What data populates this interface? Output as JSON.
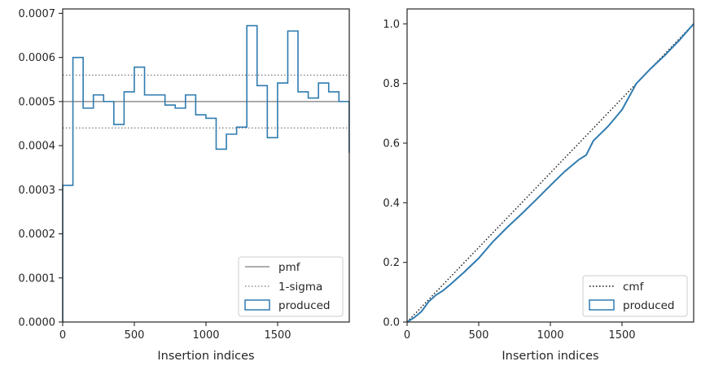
{
  "chart_data": [
    {
      "type": "step-histogram",
      "xlabel": "Insertion indices",
      "ylabel": "",
      "xlim": [
        0,
        2000
      ],
      "ylim": [
        0,
        0.00071
      ],
      "xticks": [
        0,
        500,
        1000,
        1500
      ],
      "yticks": [
        0,
        0.0001,
        0.0002,
        0.0003,
        0.0004,
        0.0005,
        0.0006,
        0.0007
      ],
      "ytick_labels": [
        "0.0000",
        "0.0001",
        "0.0002",
        "0.0003",
        "0.0004",
        "0.0005",
        "0.0006",
        "0.0007"
      ],
      "grid": false,
      "legend_position": "lower-right",
      "reference_lines": [
        {
          "name": "pmf",
          "y": 0.0005,
          "style": "solid",
          "color": "#7a7a7a"
        },
        {
          "name": "1-sigma",
          "y": [
            0.00044,
            0.00056
          ],
          "style": "dotted",
          "color": "#7a7a7a"
        }
      ],
      "series": [
        {
          "name": "produced",
          "color": "#2f7bb0",
          "bin_width": 71.4,
          "values": [
            0.00031,
            0.0006,
            0.000485,
            0.000515,
            0.0005,
            0.000448,
            0.000522,
            0.000578,
            0.000515,
            0.000515,
            0.000492,
            0.000485,
            0.000515,
            0.00047,
            0.000462,
            0.000392,
            0.000426,
            0.000442,
            0.000672,
            0.000536,
            0.000418,
            0.000542,
            0.00066,
            0.000522,
            0.000508,
            0.000542,
            0.000522,
            0.0005,
            0.000385
          ]
        }
      ]
    },
    {
      "type": "line",
      "xlabel": "Insertion indices",
      "ylabel": "",
      "xlim": [
        0,
        2000
      ],
      "ylim": [
        0,
        1.05
      ],
      "xticks": [
        0,
        500,
        1000,
        1500
      ],
      "yticks": [
        0,
        0.2,
        0.4,
        0.6,
        0.8,
        1.0
      ],
      "ytick_labels": [
        "0.0",
        "0.2",
        "0.4",
        "0.6",
        "0.8",
        "1.0"
      ],
      "grid": false,
      "legend_position": "lower-right",
      "series": [
        {
          "name": "cmf",
          "style": "dotted",
          "color": "#111111",
          "x": [
            0,
            2000
          ],
          "y": [
            0,
            1.0
          ]
        },
        {
          "name": "produced",
          "style": "solid",
          "color": "#2f7bb0",
          "x": [
            0,
            50,
            100,
            150,
            200,
            250,
            300,
            400,
            500,
            600,
            700,
            800,
            900,
            1000,
            1100,
            1200,
            1250,
            1300,
            1400,
            1500,
            1600,
            1700,
            1800,
            1900,
            2000
          ],
          "y": [
            0,
            0.015,
            0.035,
            0.068,
            0.09,
            0.105,
            0.125,
            0.168,
            0.214,
            0.27,
            0.318,
            0.363,
            0.41,
            0.458,
            0.505,
            0.545,
            0.56,
            0.608,
            0.655,
            0.712,
            0.8,
            0.85,
            0.895,
            0.945,
            1.0
          ]
        }
      ]
    }
  ],
  "panels": [
    {
      "xtick_labels": [
        "0",
        "500",
        "1000",
        "1500"
      ],
      "xlabel": "Insertion indices",
      "legend": [
        "pmf",
        "1-sigma",
        "produced"
      ]
    },
    {
      "xtick_labels": [
        "0",
        "500",
        "1000",
        "1500"
      ],
      "xlabel": "Insertion indices",
      "legend": [
        "cmf",
        "produced"
      ]
    }
  ]
}
